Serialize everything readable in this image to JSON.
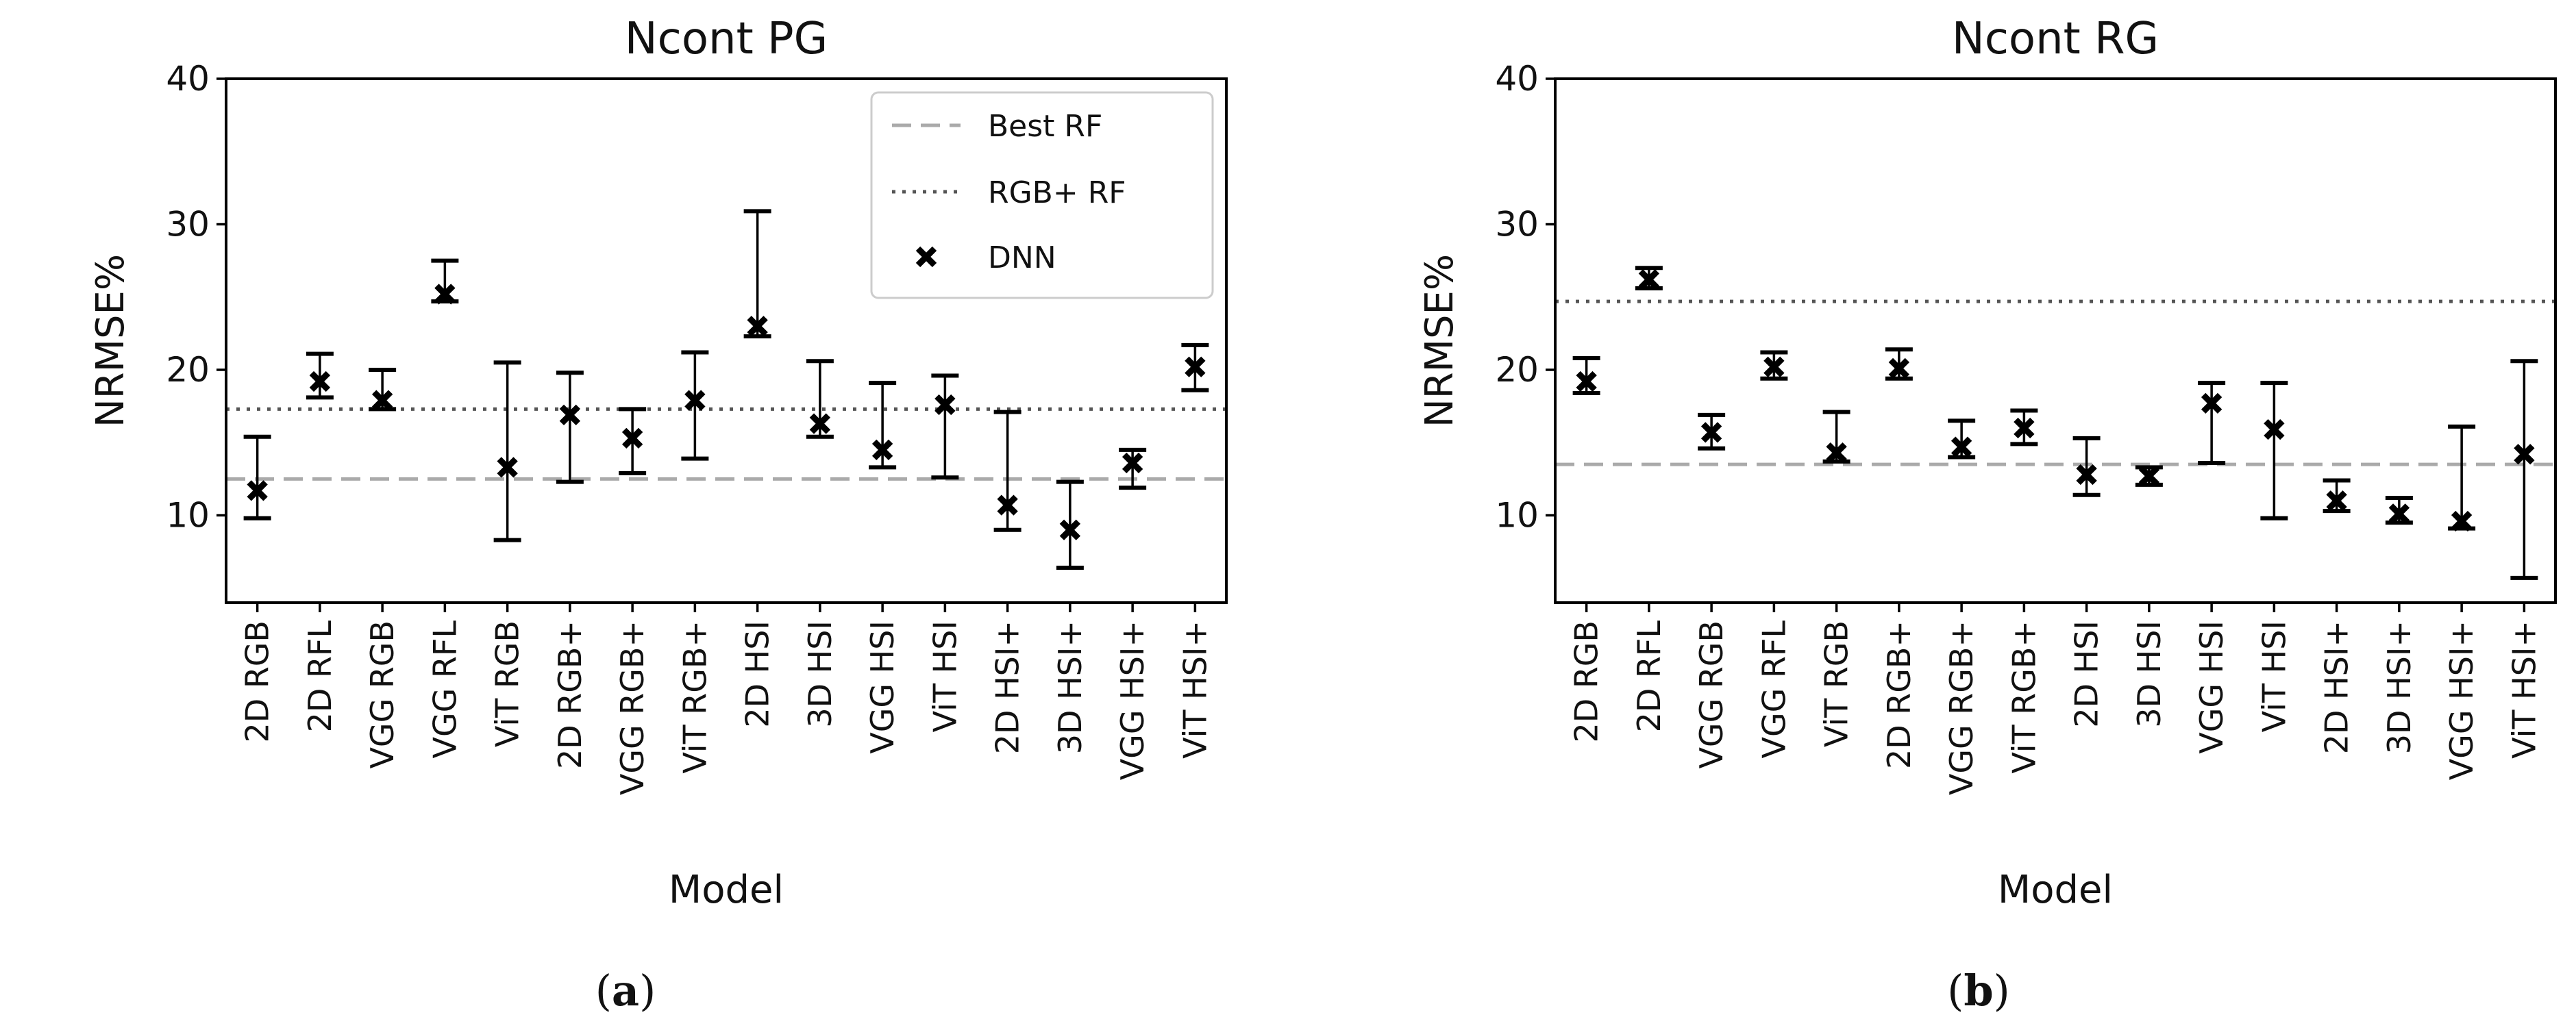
{
  "chart_data": [
    {
      "type": "scatter",
      "title": "Ncont PG",
      "xlabel": "Model",
      "ylabel": "NRMSE%",
      "ylim": [
        4,
        40
      ],
      "yticks": [
        10,
        20,
        30,
        40
      ],
      "grid": false,
      "caption_letter": "a",
      "legend": {
        "placement": "top-right",
        "entries": [
          "Best RF",
          "RGB+ RF",
          "DNN"
        ]
      },
      "categories": [
        "2D RGB",
        "2D RFL",
        "VGG RGB",
        "VGG RFL",
        "ViT RGB",
        "2D RGB+",
        "VGG RGB+",
        "ViT RGB+",
        "2D HSI",
        "3D HSI",
        "VGG HSI",
        "ViT HSI",
        "2D HSI+",
        "3D HSI+",
        "VGG HSI+",
        "ViT HSI+"
      ],
      "values": [
        11.7,
        19.2,
        17.9,
        25.2,
        13.3,
        16.9,
        15.3,
        17.9,
        23.0,
        16.3,
        14.5,
        17.6,
        10.7,
        9.0,
        13.6,
        20.2
      ],
      "err_low": [
        9.8,
        18.1,
        17.3,
        24.7,
        8.3,
        12.3,
        12.9,
        13.9,
        22.3,
        15.4,
        13.3,
        12.6,
        9.0,
        6.4,
        11.9,
        18.6
      ],
      "err_high": [
        15.4,
        21.1,
        20.0,
        27.5,
        20.5,
        19.8,
        17.3,
        21.2,
        30.9,
        20.6,
        19.1,
        19.6,
        17.1,
        12.3,
        14.5,
        21.7
      ],
      "reference_lines": [
        {
          "name": "Best RF",
          "value": 12.5,
          "style": "dashed",
          "color": "#aaaaaa"
        },
        {
          "name": "RGB+ RF",
          "value": 17.3,
          "style": "dotted",
          "color": "#555555"
        }
      ]
    },
    {
      "type": "scatter",
      "title": "Ncont RG",
      "xlabel": "Model",
      "ylabel": "NRMSE%",
      "ylim": [
        4,
        40
      ],
      "yticks": [
        10,
        20,
        30,
        40
      ],
      "grid": false,
      "caption_letter": "b",
      "legend": null,
      "categories": [
        "2D RGB",
        "2D RFL",
        "VGG RGB",
        "VGG RFL",
        "ViT RGB",
        "2D RGB+",
        "VGG RGB+",
        "ViT RGB+",
        "2D HSI",
        "3D HSI",
        "VGG HSI",
        "ViT HSI",
        "2D HSI+",
        "3D HSI+",
        "VGG HSI+",
        "ViT HSI+"
      ],
      "values": [
        19.2,
        26.2,
        15.7,
        20.2,
        14.3,
        20.1,
        14.7,
        16.0,
        12.8,
        12.7,
        17.7,
        15.9,
        11.0,
        10.1,
        9.6,
        14.2
      ],
      "err_low": [
        18.4,
        25.6,
        14.6,
        19.4,
        13.7,
        19.4,
        14.0,
        14.9,
        11.4,
        12.1,
        13.6,
        9.8,
        10.3,
        9.5,
        9.1,
        5.7
      ],
      "err_high": [
        20.8,
        27.0,
        16.9,
        21.2,
        17.1,
        21.4,
        16.5,
        17.2,
        15.3,
        13.3,
        19.1,
        19.1,
        12.4,
        11.2,
        16.1,
        20.6
      ],
      "reference_lines": [
        {
          "name": "Best RF",
          "value": 13.5,
          "style": "dashed",
          "color": "#aaaaaa"
        },
        {
          "name": "RGB+ RF",
          "value": 24.7,
          "style": "dotted",
          "color": "#555555"
        }
      ]
    }
  ]
}
